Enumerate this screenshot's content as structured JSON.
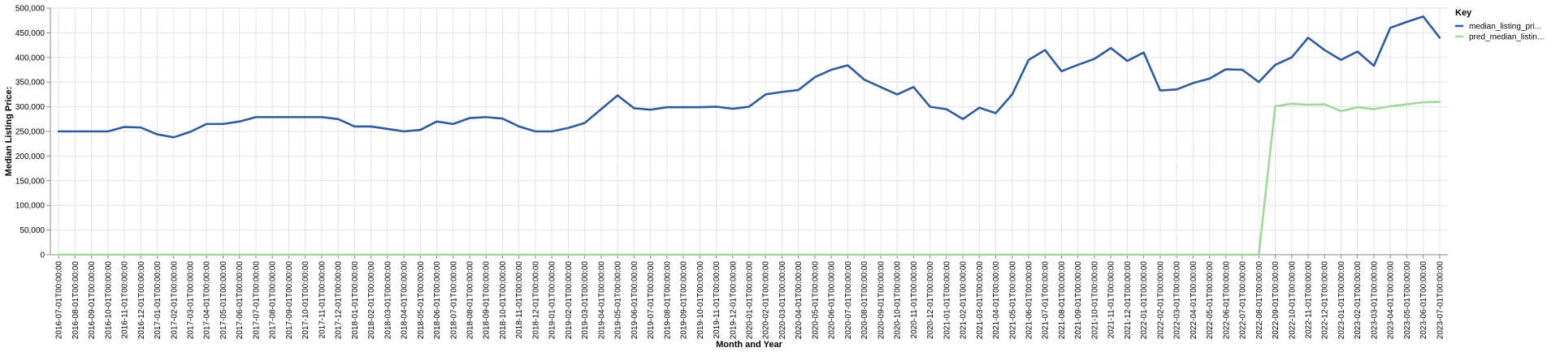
{
  "chart_data": {
    "type": "line",
    "title": "",
    "xlabel": "Month and Year",
    "ylabel": "Median Listing Price:",
    "ylim": [
      0,
      500000
    ],
    "yticks": [
      0,
      50000,
      100000,
      150000,
      200000,
      250000,
      300000,
      350000,
      400000,
      450000,
      500000
    ],
    "ytick_labels": [
      "0",
      "50,000",
      "100,000",
      "150,000",
      "200,000",
      "250,000",
      "300,000",
      "350,000",
      "400,000",
      "450,000",
      "500,000"
    ],
    "grid": true,
    "legend_title": "Key",
    "legend_position": "right",
    "x": [
      "2016-07-01T00:00:00",
      "2016-08-01T00:00:00",
      "2016-09-01T00:00:00",
      "2016-10-01T00:00:00",
      "2016-11-01T00:00:00",
      "2016-12-01T00:00:00",
      "2017-01-01T00:00:00",
      "2017-02-01T00:00:00",
      "2017-03-01T00:00:00",
      "2017-04-01T00:00:00",
      "2017-05-01T00:00:00",
      "2017-06-01T00:00:00",
      "2017-07-01T00:00:00",
      "2017-08-01T00:00:00",
      "2017-09-01T00:00:00",
      "2017-10-01T00:00:00",
      "2017-11-01T00:00:00",
      "2017-12-01T00:00:00",
      "2018-01-01T00:00:00",
      "2018-02-01T00:00:00",
      "2018-03-01T00:00:00",
      "2018-04-01T00:00:00",
      "2018-05-01T00:00:00",
      "2018-06-01T00:00:00",
      "2018-07-01T00:00:00",
      "2018-08-01T00:00:00",
      "2018-09-01T00:00:00",
      "2018-10-01T00:00:00",
      "2018-11-01T00:00:00",
      "2018-12-01T00:00:00",
      "2019-01-01T00:00:00",
      "2019-02-01T00:00:00",
      "2019-03-01T00:00:00",
      "2019-04-01T00:00:00",
      "2019-05-01T00:00:00",
      "2019-06-01T00:00:00",
      "2019-07-01T00:00:00",
      "2019-08-01T00:00:00",
      "2019-09-01T00:00:00",
      "2019-10-01T00:00:00",
      "2019-11-01T00:00:00",
      "2019-12-01T00:00:00",
      "2020-01-01T00:00:00",
      "2020-02-01T00:00:00",
      "2020-03-01T00:00:00",
      "2020-04-01T00:00:00",
      "2020-05-01T00:00:00",
      "2020-06-01T00:00:00",
      "2020-07-01T00:00:00",
      "2020-08-01T00:00:00",
      "2020-09-01T00:00:00",
      "2020-10-01T00:00:00",
      "2020-11-01T00:00:00",
      "2020-12-01T00:00:00",
      "2021-01-01T00:00:00",
      "2021-02-01T00:00:00",
      "2021-03-01T00:00:00",
      "2021-04-01T00:00:00",
      "2021-05-01T00:00:00",
      "2021-06-01T00:00:00",
      "2021-07-01T00:00:00",
      "2021-08-01T00:00:00",
      "2021-09-01T00:00:00",
      "2021-10-01T00:00:00",
      "2021-11-01T00:00:00",
      "2021-12-01T00:00:00",
      "2022-01-01T00:00:00",
      "2022-02-01T00:00:00",
      "2022-03-01T00:00:00",
      "2022-04-01T00:00:00",
      "2022-05-01T00:00:00",
      "2022-06-01T00:00:00",
      "2022-07-01T00:00:00",
      "2022-08-01T00:00:00",
      "2022-09-01T00:00:00",
      "2022-10-01T00:00:00",
      "2022-11-01T00:00:00",
      "2022-12-01T00:00:00",
      "2023-01-01T00:00:00",
      "2023-02-01T00:00:00",
      "2023-03-01T00:00:00",
      "2023-04-01T00:00:00",
      "2023-05-01T00:00:00",
      "2023-06-01T00:00:00",
      "2023-07-01T00:00:00"
    ],
    "series": [
      {
        "name": "median_listing_pri...",
        "color": "#2f5a9e",
        "values": [
          250000,
          250000,
          250000,
          250000,
          259000,
          258000,
          244000,
          238000,
          249000,
          265000,
          265000,
          270000,
          279000,
          279000,
          279000,
          279000,
          279000,
          275000,
          260000,
          260000,
          255000,
          250000,
          253000,
          270000,
          265000,
          277000,
          279000,
          276000,
          260000,
          250000,
          250000,
          257000,
          267000,
          295000,
          323000,
          297000,
          294000,
          299000,
          299000,
          299000,
          300000,
          296000,
          300000,
          325000,
          330000,
          334000,
          360000,
          375000,
          384000,
          355000,
          340000,
          325000,
          340000,
          300000,
          295000,
          275000,
          298000,
          287000,
          325000,
          395000,
          415000,
          372000,
          385000,
          397000,
          419000,
          393000,
          410000,
          333000,
          335000,
          348000,
          357000,
          376000,
          375000,
          350000,
          385000,
          400000,
          440000,
          415000,
          395000,
          412000,
          383000,
          460000,
          472000,
          483000,
          440000
        ]
      },
      {
        "name": "pred_median_listin...",
        "color": "#a0d89a",
        "values": [
          0,
          0,
          0,
          0,
          0,
          0,
          0,
          0,
          0,
          0,
          0,
          0,
          0,
          0,
          0,
          0,
          0,
          0,
          0,
          0,
          0,
          0,
          0,
          0,
          0,
          0,
          0,
          0,
          0,
          0,
          0,
          0,
          0,
          0,
          0,
          0,
          0,
          0,
          0,
          0,
          0,
          0,
          0,
          0,
          0,
          0,
          0,
          0,
          0,
          0,
          0,
          0,
          0,
          0,
          0,
          0,
          0,
          0,
          0,
          0,
          0,
          0,
          0,
          0,
          0,
          0,
          0,
          0,
          0,
          0,
          0,
          0,
          0,
          0,
          301000,
          306000,
          304000,
          305000,
          291000,
          299000,
          295000,
          301000,
          305000,
          309000,
          310000
        ]
      }
    ]
  }
}
